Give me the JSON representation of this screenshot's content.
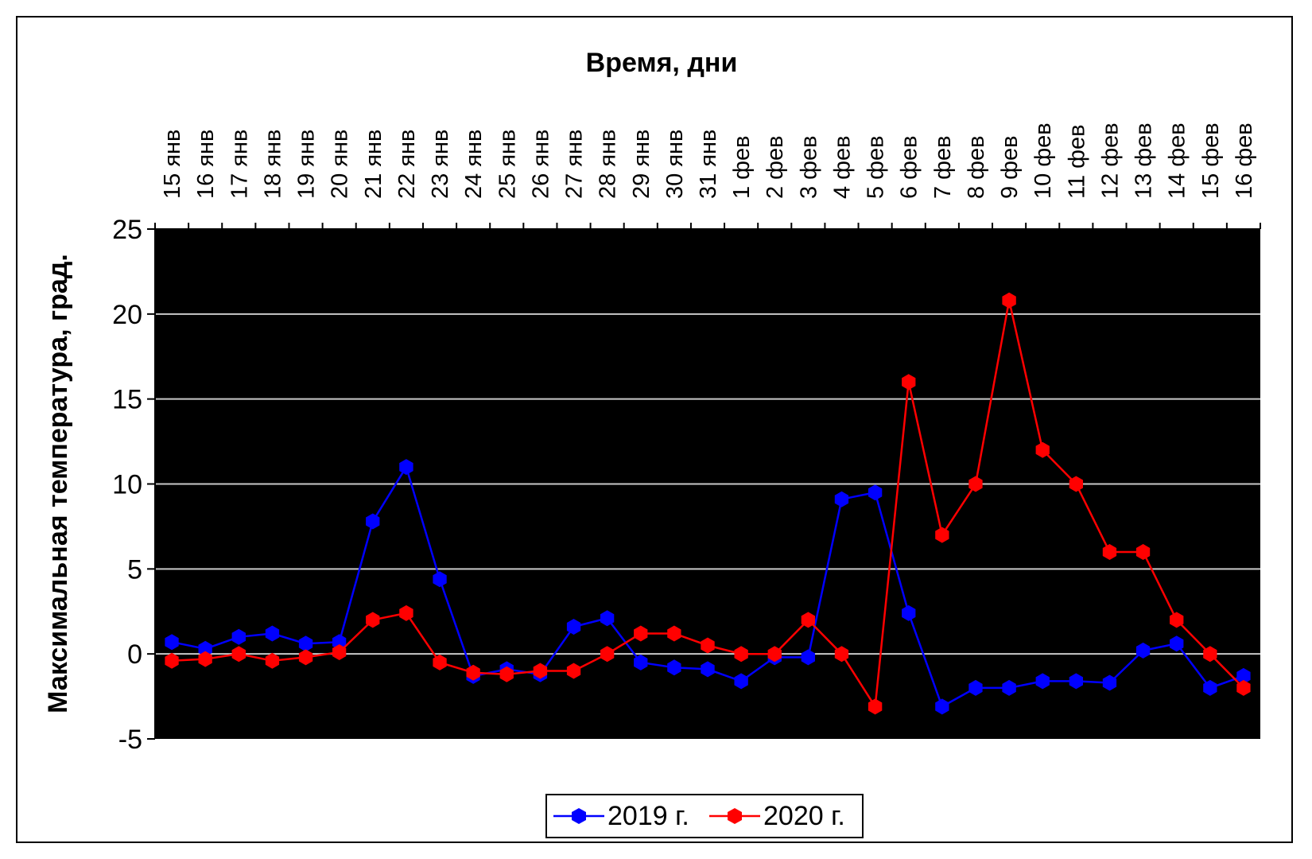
{
  "chart_data": {
    "type": "line",
    "xlabel": "Время, дни",
    "ylabel": "Максимальная температура, град.",
    "categories": [
      "15 янв",
      "16 янв",
      "17 янв",
      "18 янв",
      "19 янв",
      "20 янв",
      "21 янв",
      "22 янв",
      "23 янв",
      "24 янв",
      "25 янв",
      "26 янв",
      "27 янв",
      "28 янв",
      "29 янв",
      "30 янв",
      "31 янв",
      "1 фев",
      "2 фев",
      "3 фев",
      "4 фев",
      "5 фев",
      "6 фев",
      "7 фев",
      "8 фев",
      "9 фев",
      "10 фев",
      "11 фев",
      "12 фев",
      "13 фев",
      "14 фев",
      "15 фев",
      "16 фев"
    ],
    "yticks": [
      "25",
      "20",
      "15",
      "10",
      "5",
      "0",
      "-5"
    ],
    "ylim": [
      -5,
      25
    ],
    "x_axis_position": "top",
    "grid": true,
    "legend_position": "bottom",
    "series": [
      {
        "name": "2019 г.",
        "color": "#0000ff",
        "values": [
          0.7,
          0.3,
          1.0,
          1.2,
          0.6,
          0.7,
          7.8,
          11.0,
          4.4,
          -1.3,
          -0.9,
          -1.2,
          1.6,
          2.1,
          -0.5,
          -0.8,
          -0.9,
          -1.6,
          -0.2,
          -0.2,
          9.1,
          9.5,
          2.4,
          -3.1,
          -2.0,
          -2.0,
          -1.6,
          -1.6,
          -1.7,
          0.2,
          0.6,
          -2.0,
          -1.3
        ]
      },
      {
        "name": "2020 г.",
        "color": "#ff0000",
        "values": [
          -0.4,
          -0.3,
          0.0,
          -0.4,
          -0.2,
          0.1,
          2.0,
          2.4,
          -0.5,
          -1.1,
          -1.2,
          -1.0,
          -1.0,
          0.0,
          1.2,
          1.2,
          0.5,
          0.0,
          0.0,
          2.0,
          0.0,
          -3.1,
          16.0,
          7.0,
          10.0,
          20.8,
          12.0,
          10.0,
          6.0,
          6.0,
          2.0,
          0.0,
          -2.0
        ]
      }
    ]
  },
  "legend": {
    "series_0_label": "2019 г.",
    "series_1_label": "2020 г."
  }
}
